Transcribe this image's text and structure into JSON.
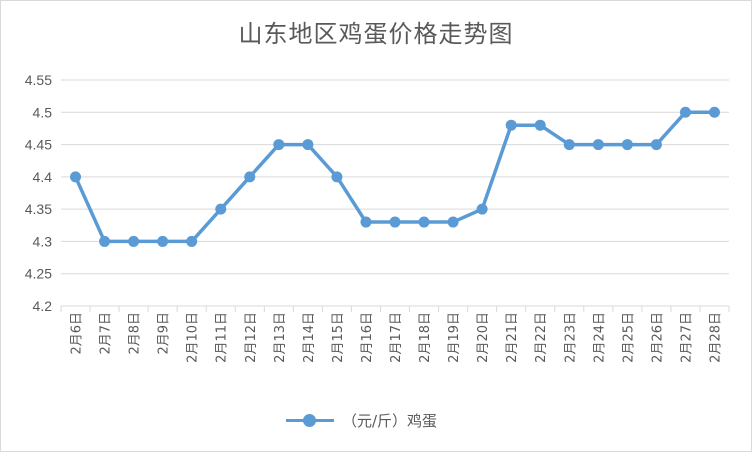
{
  "chart_data": {
    "type": "line",
    "title": "山东地区鸡蛋价格走势图",
    "categories": [
      "2月6日",
      "2月7日",
      "2月8日",
      "2月9日",
      "2月10日",
      "2月11日",
      "2月12日",
      "2月13日",
      "2月14日",
      "2月15日",
      "2月16日",
      "2月17日",
      "2月18日",
      "2月19日",
      "2月20日",
      "2月21日",
      "2月22日",
      "2月23日",
      "2月24日",
      "2月25日",
      "2月26日",
      "2月27日",
      "2月28日"
    ],
    "series": [
      {
        "name": "（元/斤）鸡蛋",
        "values": [
          4.4,
          4.3,
          4.3,
          4.3,
          4.3,
          4.35,
          4.4,
          4.45,
          4.45,
          4.4,
          4.33,
          4.33,
          4.33,
          4.33,
          4.35,
          4.48,
          4.48,
          4.45,
          4.45,
          4.45,
          4.45,
          4.5,
          4.5
        ],
        "color": "#5b9bd5"
      }
    ],
    "yticks": [
      "4.2",
      "4.25",
      "4.3",
      "4.35",
      "4.4",
      "4.45",
      "4.5",
      "4.55"
    ],
    "ylim": [
      4.2,
      4.55
    ],
    "grid": true,
    "legend": "bottom"
  }
}
